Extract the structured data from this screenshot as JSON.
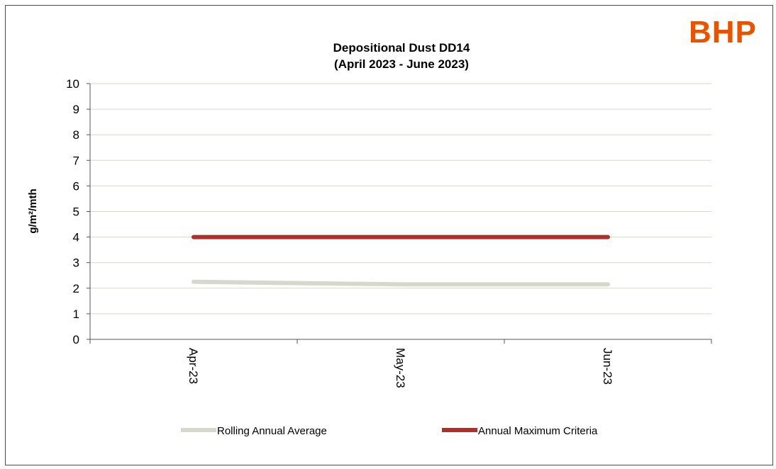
{
  "logo": {
    "text": "BHP",
    "color": "#e65400"
  },
  "chart_data": {
    "type": "line",
    "title": "Depositional Dust DD14",
    "subtitle": "(April 2023 - June 2023)",
    "ylabel": "g/m²/mth",
    "xlabel": "",
    "categories": [
      "Apr-23",
      "May-23",
      "Jun-23"
    ],
    "ylim": [
      0,
      10
    ],
    "yticks": [
      "0",
      "1",
      "2",
      "3",
      "4",
      "5",
      "6",
      "7",
      "8",
      "9",
      "10"
    ],
    "grid": true,
    "legend_position": "bottom",
    "series": [
      {
        "name": "Rolling Annual Average",
        "values": [
          2.25,
          2.15,
          2.15
        ],
        "color": "#d6d8cc"
      },
      {
        "name": "Annual Maximum Criteria",
        "values": [
          4,
          4,
          4
        ],
        "color": "#a8322d"
      }
    ]
  }
}
